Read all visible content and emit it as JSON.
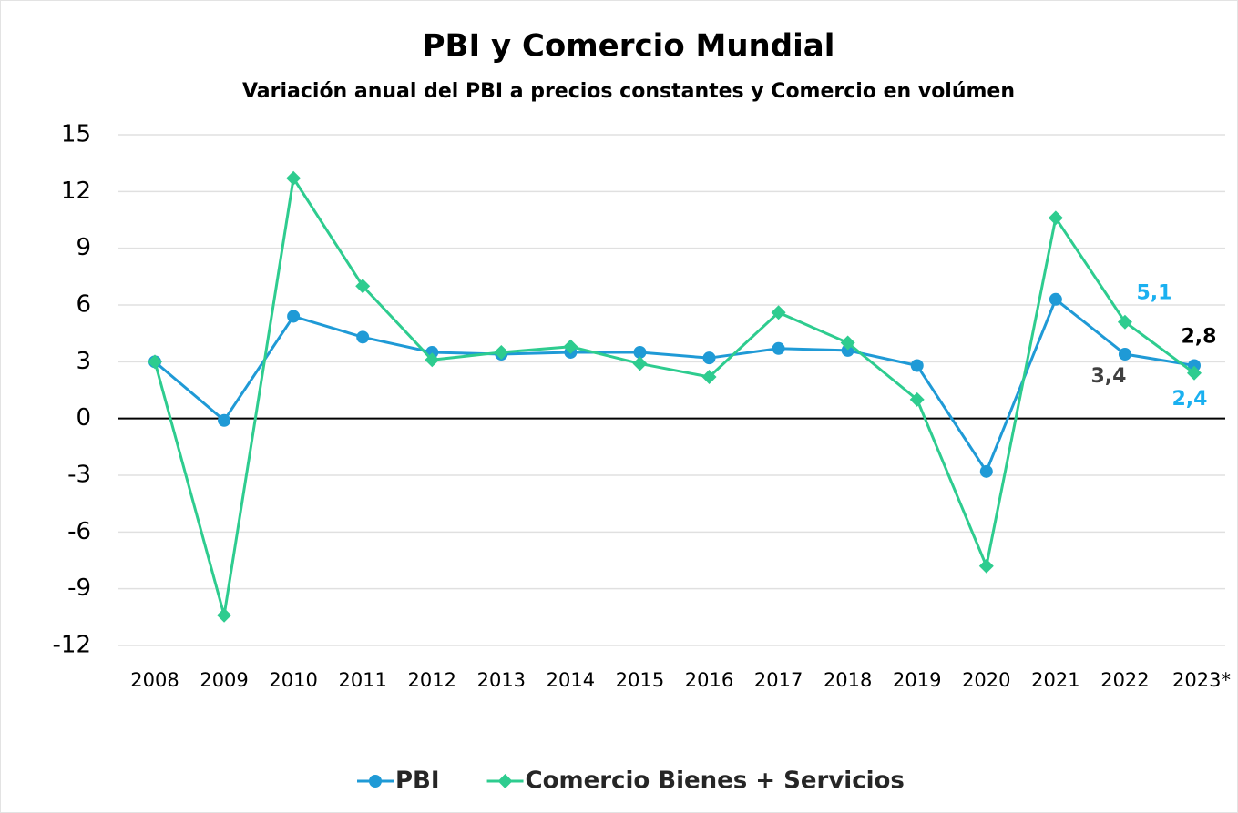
{
  "chart_data": {
    "type": "line",
    "title": "PBI y Comercio Mundial",
    "subtitle": "Variación anual del PBI a precios constantes y Comercio en volúmen",
    "categories": [
      "2008",
      "2009",
      "2010",
      "2011",
      "2012",
      "2013",
      "2014",
      "2015",
      "2016",
      "2017",
      "2018",
      "2019",
      "2020",
      "2021",
      "2022",
      "2023*"
    ],
    "series": [
      {
        "name": "PBI",
        "color": "#1f9ad6",
        "marker": "circle",
        "values": [
          3.0,
          -0.1,
          5.4,
          4.3,
          3.5,
          3.4,
          3.5,
          3.5,
          3.2,
          3.7,
          3.6,
          2.8,
          -2.8,
          6.3,
          3.4,
          2.8
        ],
        "value_labels": [
          null,
          null,
          null,
          null,
          null,
          null,
          null,
          null,
          null,
          null,
          null,
          null,
          null,
          null,
          "3,4",
          "2,8"
        ]
      },
      {
        "name": "Comercio Bienes + Servicios",
        "color": "#2ecc8f",
        "marker": "diamond",
        "values": [
          3.0,
          -10.4,
          12.7,
          7.0,
          3.1,
          3.5,
          3.8,
          2.9,
          2.2,
          5.6,
          4.0,
          1.0,
          -7.8,
          10.6,
          5.1,
          2.4
        ],
        "value_labels": [
          null,
          null,
          null,
          null,
          null,
          null,
          null,
          null,
          null,
          null,
          null,
          null,
          null,
          null,
          "5,1",
          "2,4"
        ]
      }
    ],
    "ylim": [
      -12,
      15
    ],
    "yticks": [
      -12,
      -9,
      -6,
      -3,
      0,
      3,
      6,
      9,
      12,
      15
    ],
    "grid": true,
    "legend": "bottom"
  }
}
